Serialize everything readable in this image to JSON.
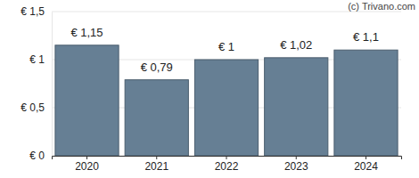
{
  "chart_data": {
    "type": "bar",
    "categories": [
      "2020",
      "2021",
      "2022",
      "2023",
      "2024"
    ],
    "values": [
      1.15,
      0.79,
      1,
      1.02,
      1.1
    ],
    "value_labels": [
      "€ 1,15",
      "€ 0,79",
      "€ 1",
      "€ 1,02",
      "€ 1,1"
    ],
    "color": "#667f94",
    "ylim": [
      0,
      1.5
    ],
    "yticks": [
      {
        "value": 0,
        "label": "€ 0"
      },
      {
        "value": 0.5,
        "label": "€ 0,5"
      },
      {
        "value": 1,
        "label": "€ 1"
      },
      {
        "value": 1.5,
        "label": "€ 1,5"
      }
    ],
    "grid": true,
    "data_labels": true,
    "annotations": [
      "(c) Trivano.com"
    ]
  }
}
